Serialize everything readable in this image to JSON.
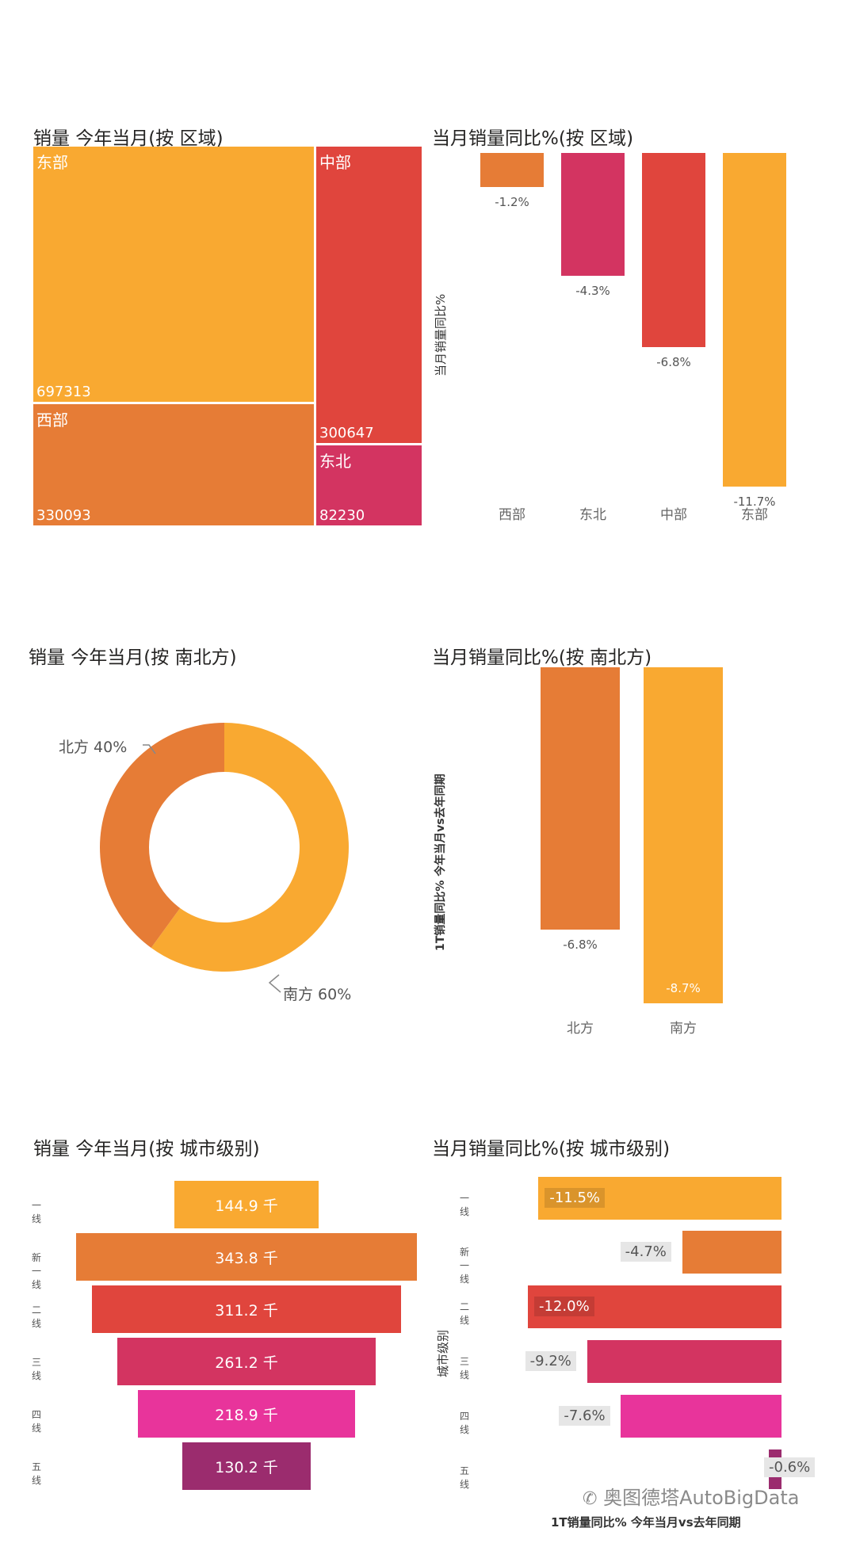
{
  "colors": {
    "orange": "#F9A931",
    "deep_orange": "#E67C36",
    "red": "#E0453D",
    "crimson": "#D33461",
    "magenta": "#E8349B",
    "plum": "#9B2C6E"
  },
  "charts": {
    "region_treemap": {
      "title": "销量 今年当月(按 区域)",
      "chart_data": {
        "type": "treemap",
        "items": [
          {
            "name": "东部",
            "value": 697313,
            "color": "#F9A931"
          },
          {
            "name": "西部",
            "value": 330093,
            "color": "#E67C36"
          },
          {
            "name": "中部",
            "value": 300647,
            "color": "#E0453D"
          },
          {
            "name": "东北",
            "value": 82230,
            "color": "#D33461"
          }
        ]
      },
      "labels": {
        "east": "东部",
        "east_val": "697313",
        "west": "西部",
        "west_val": "330093",
        "central": "中部",
        "central_val": "300647",
        "northeast": "东北",
        "northeast_val": "82230"
      }
    },
    "region_yoy": {
      "title": "当月销量同比%(按 区域)",
      "ylabel": "当月销量同比%",
      "chart_data": {
        "type": "bar",
        "categories": [
          "西部",
          "东北",
          "中部",
          "东部"
        ],
        "values": [
          -1.2,
          -4.3,
          -6.8,
          -11.7
        ],
        "value_labels": [
          "-1.2%",
          "-4.3%",
          "-6.8%",
          "-11.7%"
        ],
        "colors": [
          "#E67C36",
          "#D33461",
          "#E0453D",
          "#F9A931"
        ]
      }
    },
    "ns_donut": {
      "title": "销量 今年当月(按 南北方)",
      "chart_data": {
        "type": "pie",
        "slices": [
          {
            "name": "北方",
            "percent": 40,
            "label": "北方 40%",
            "color": "#E67C36"
          },
          {
            "name": "南方",
            "percent": 60,
            "label": "南方 60%",
            "color": "#F9A931"
          }
        ]
      }
    },
    "ns_yoy": {
      "title": "当月销量同比%(按 南北方)",
      "ylabel": "1T销量同比% 今年当月vs去年同期",
      "chart_data": {
        "type": "bar",
        "categories": [
          "北方",
          "南方"
        ],
        "values": [
          -6.8,
          -8.7
        ],
        "value_labels": [
          "-6.8%",
          "-8.7%"
        ],
        "colors": [
          "#E67C36",
          "#F9A931"
        ]
      }
    },
    "city_funnel": {
      "title": "销量 今年当月(按 城市级别)",
      "chart_data": {
        "type": "funnel",
        "categories": [
          "一线",
          "新一线",
          "二线",
          "三线",
          "四线",
          "五线"
        ],
        "values": [
          144.9,
          343.8,
          311.2,
          261.2,
          218.9,
          130.2
        ],
        "value_labels": [
          "144.9 千",
          "343.8 千",
          "311.2 千",
          "261.2 千",
          "218.9 千",
          "130.2 千"
        ],
        "colors": [
          "#F9A931",
          "#E67C36",
          "#E0453D",
          "#D33461",
          "#E8349B",
          "#9B2C6E"
        ]
      }
    },
    "city_yoy": {
      "title": "当月销量同比%(按 城市级别)",
      "ylabel": "城市级别",
      "xlabel": "1T销量同比% 今年当月vs去年同期",
      "chart_data": {
        "type": "bar",
        "orientation": "horizontal",
        "categories": [
          "一线",
          "新一线",
          "二线",
          "三线",
          "四线",
          "五线"
        ],
        "values": [
          -11.5,
          -4.7,
          -12.0,
          -9.2,
          -7.6,
          -0.6
        ],
        "value_labels": [
          "-11.5%",
          "-4.7%",
          "-12.0%",
          "-9.2%",
          "-7.6%",
          "-0.6%"
        ],
        "colors": [
          "#F9A931",
          "#E67C36",
          "#E0453D",
          "#D33461",
          "#E8349B",
          "#9B2C6E"
        ]
      }
    }
  },
  "watermark": "奥图德塔AutoBigData"
}
